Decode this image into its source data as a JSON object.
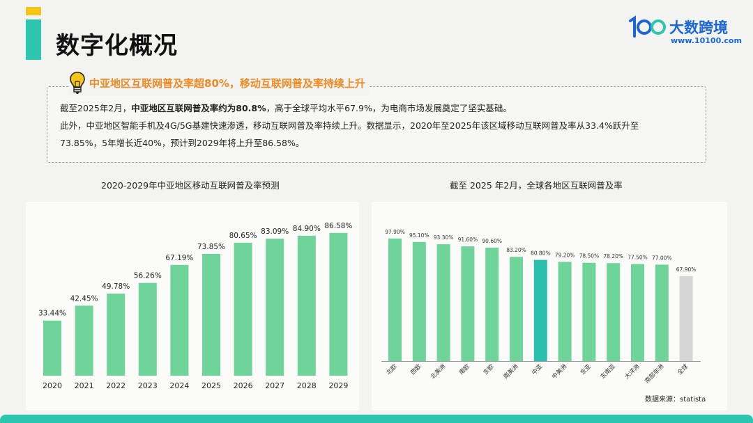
{
  "page": {
    "title": "数字化概况",
    "logo_name": "大数跨境",
    "logo_url": "www.10100.com",
    "colors": {
      "accent_teal": "#2cc5b0",
      "accent_yellow": "#f5c518",
      "bar_green": "#6fd49a",
      "highlight": "#2bbfad",
      "global_gray": "#d6d6d6",
      "headline_orange": "#f08a24",
      "brand_blue": "#1a66d6"
    }
  },
  "info": {
    "headline": "中亚地区互联网普及率超80%，移动互联网普及率持续上升",
    "p1_prefix": "截至2025年2月，",
    "p1_bold": "中亚地区互联网普及率约为80.8%",
    "p1_suffix": "，高于全球平均水平67.9%，为电商市场发展奠定了坚实基础。",
    "p2": "此外，中亚地区智能手机及4G/5G基建快速渗透，移动互联网普及率持续上升。数据显示，2020年至2025年该区域移动互联网普及率从33.4%跃升至",
    "p3": "73.85%，5年增长近40%，预计到2029年将上升至86.58%。"
  },
  "chart_data": [
    {
      "type": "bar",
      "title": "2020-2029年中亚地区移动互联网普及率预测",
      "categories": [
        "2020",
        "2021",
        "2022",
        "2023",
        "2024",
        "2025",
        "2026",
        "2027",
        "2028",
        "2029"
      ],
      "values": [
        33.44,
        42.45,
        49.78,
        56.26,
        67.19,
        73.85,
        80.65,
        83.09,
        84.9,
        86.58
      ],
      "labels": [
        "33.44%",
        "42.45%",
        "49.78%",
        "56.26%",
        "67.19%",
        "73.85%",
        "80.65%",
        "83.09%",
        "84.90%",
        "86.58%"
      ],
      "ylim": [
        0,
        100
      ],
      "grid": false,
      "color": "#6fd49a"
    },
    {
      "type": "bar",
      "title": "截至 2025 年2月，全球各地区互联网普及率",
      "categories": [
        "北欧",
        "西欧",
        "北美洲",
        "南欧",
        "东欧",
        "南美洲",
        "中亚",
        "中美洲",
        "东亚",
        "东南亚",
        "大洋洲",
        "南部非洲",
        "全球"
      ],
      "values": [
        97.9,
        95.1,
        93.3,
        91.6,
        90.6,
        83.2,
        80.8,
        79.2,
        78.5,
        78.2,
        77.5,
        77.0,
        67.9
      ],
      "labels": [
        "97.90%",
        "95.10%",
        "93.30%",
        "91.60%",
        "90.60%",
        "83.20%",
        "80.80%",
        "79.20%",
        "78.50%",
        "78.20%",
        "77.50%",
        "77.00%",
        "67.90%"
      ],
      "highlight": "中亚",
      "reference": "全球",
      "ylim": [
        0,
        100
      ],
      "grid": false,
      "source": "数据来源：statista"
    }
  ]
}
